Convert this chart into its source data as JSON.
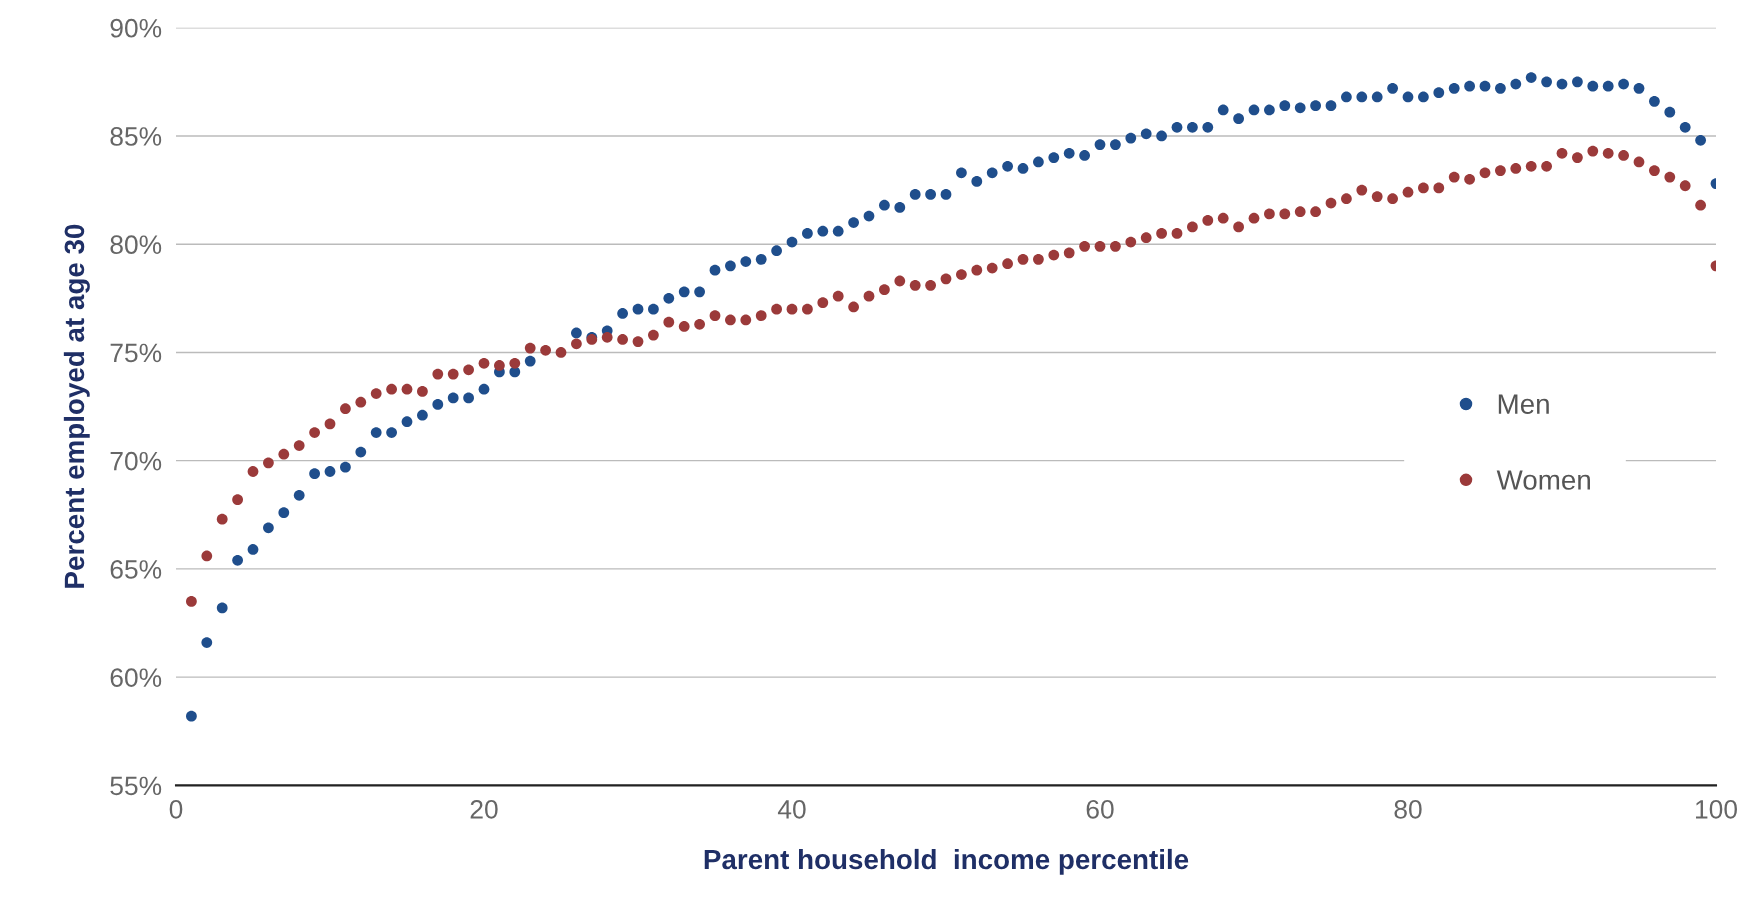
{
  "chart_data": {
    "type": "scatter",
    "xlabel": "Parent household  income percentile",
    "ylabel": "Percent employed at age 30",
    "x": [
      1,
      2,
      3,
      4,
      5,
      6,
      7,
      8,
      9,
      10,
      11,
      12,
      13,
      14,
      15,
      16,
      17,
      18,
      19,
      20,
      21,
      22,
      23,
      24,
      25,
      26,
      27,
      28,
      29,
      30,
      31,
      32,
      33,
      34,
      35,
      36,
      37,
      38,
      39,
      40,
      41,
      42,
      43,
      44,
      45,
      46,
      47,
      48,
      49,
      50,
      51,
      52,
      53,
      54,
      55,
      56,
      57,
      58,
      59,
      60,
      61,
      62,
      63,
      64,
      65,
      66,
      67,
      68,
      69,
      70,
      71,
      72,
      73,
      74,
      75,
      76,
      77,
      78,
      79,
      80,
      81,
      82,
      83,
      84,
      85,
      86,
      87,
      88,
      89,
      90,
      91,
      92,
      93,
      94,
      95,
      96,
      97,
      98,
      99,
      100
    ],
    "series": [
      {
        "name": "Men",
        "color": "#1f4e8c",
        "values": [
          58.2,
          61.6,
          63.2,
          65.4,
          65.9,
          66.9,
          67.6,
          68.4,
          69.4,
          69.5,
          69.7,
          70.4,
          71.3,
          71.3,
          71.8,
          72.1,
          72.6,
          72.9,
          72.9,
          73.3,
          74.1,
          74.1,
          74.6,
          null,
          null,
          75.9,
          75.7,
          76.0,
          76.8,
          77.0,
          77.0,
          77.5,
          77.8,
          77.8,
          78.8,
          79.0,
          79.2,
          79.3,
          79.7,
          80.1,
          80.5,
          80.6,
          80.6,
          81.0,
          81.3,
          81.8,
          81.7,
          82.3,
          82.3,
          82.3,
          83.3,
          82.9,
          83.3,
          83.6,
          83.5,
          83.8,
          84.0,
          84.2,
          84.1,
          84.6,
          84.6,
          84.9,
          85.1,
          85.0,
          85.4,
          85.4,
          85.4,
          86.2,
          85.8,
          86.2,
          86.2,
          86.4,
          86.3,
          86.4,
          86.4,
          86.8,
          86.8,
          86.8,
          87.2,
          86.8,
          86.8,
          87.0,
          87.2,
          87.3,
          87.3,
          87.2,
          87.4,
          87.7,
          87.5,
          87.4,
          87.5,
          87.3,
          87.3,
          87.4,
          87.2,
          86.6,
          86.1,
          85.4,
          84.8,
          82.8
        ]
      },
      {
        "name": "Women",
        "color": "#9b3a3a",
        "values": [
          63.5,
          65.6,
          67.3,
          68.2,
          69.5,
          69.9,
          70.3,
          70.7,
          71.3,
          71.7,
          72.4,
          72.7,
          73.1,
          73.3,
          73.3,
          73.2,
          74.0,
          74.0,
          74.2,
          74.5,
          74.4,
          74.5,
          75.2,
          75.1,
          75.0,
          75.4,
          75.6,
          75.7,
          75.6,
          75.5,
          75.8,
          76.4,
          76.2,
          76.3,
          76.7,
          76.5,
          76.5,
          76.7,
          77.0,
          77.0,
          77.0,
          77.3,
          77.6,
          77.1,
          77.6,
          77.9,
          78.3,
          78.1,
          78.1,
          78.4,
          78.6,
          78.8,
          78.9,
          79.1,
          79.3,
          79.3,
          79.5,
          79.6,
          79.9,
          79.9,
          79.9,
          80.1,
          80.3,
          80.5,
          80.5,
          80.8,
          81.1,
          81.2,
          80.8,
          81.2,
          81.4,
          81.4,
          81.5,
          81.5,
          81.9,
          82.1,
          82.5,
          82.2,
          82.1,
          82.4,
          82.6,
          82.6,
          83.1,
          83.0,
          83.3,
          83.4,
          83.5,
          83.6,
          83.6,
          84.2,
          84.0,
          84.3,
          84.2,
          84.1,
          83.8,
          83.4,
          83.1,
          82.7,
          81.8,
          79.0
        ]
      }
    ],
    "xlim": [
      0,
      100
    ],
    "xticks": [
      0,
      20,
      40,
      60,
      80,
      100
    ],
    "ylim": [
      55,
      90
    ],
    "yticks": [
      {
        "value": 55,
        "label": "55%"
      },
      {
        "value": 60,
        "label": "60%"
      },
      {
        "value": 65,
        "label": "65%"
      },
      {
        "value": 70,
        "label": "70%"
      },
      {
        "value": 75,
        "label": "75%"
      },
      {
        "value": 80,
        "label": "80%"
      },
      {
        "value": 85,
        "label": "85%"
      },
      {
        "value": 90,
        "label": "90%"
      }
    ],
    "grid": "y",
    "legend": "right",
    "marker": "circle"
  }
}
